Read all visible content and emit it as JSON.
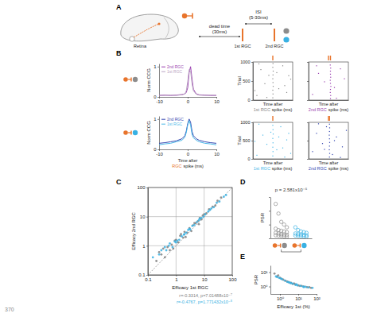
{
  "figure": {
    "line_number": "370",
    "panel_labels": [
      "A",
      "B",
      "C",
      "D",
      "E"
    ]
  },
  "diagram": {
    "region_label": "Retina",
    "dead_time": [
      "dead time",
      "(30ms)"
    ],
    "isi": [
      "ISI",
      "(5-30ms)"
    ],
    "spike_labels": [
      "1st RGC",
      "2nd RGC"
    ],
    "colors": {
      "ref": "#e8742c",
      "gray": "#8c8c8c",
      "cyan": "#39b1e3"
    }
  },
  "chart_data": [
    {
      "type": "line",
      "y_label": "Norm CCG",
      "legend": "upper left",
      "x": [
        -10,
        -8,
        -6,
        -4,
        -2,
        -1,
        -0.5,
        0,
        0.5,
        1,
        1.5,
        2,
        3,
        4,
        6,
        8,
        10
      ],
      "series": [
        {
          "name": "2nd RGC",
          "color": "#9a3fb0",
          "line_style": "solid",
          "values": [
            0.05,
            0.06,
            0.05,
            0.06,
            0.08,
            0.1,
            0.15,
            0.3,
            0.8,
            1,
            0.6,
            0.25,
            0.1,
            0.07,
            0.06,
            0.05,
            0.05
          ]
        },
        {
          "name": "1st RGC",
          "color": "#b9a3c2",
          "line_style": "solid",
          "values": [
            0.05,
            0.05,
            0.06,
            0.05,
            0.07,
            0.1,
            0.2,
            0.5,
            0.9,
            0.85,
            0.45,
            0.2,
            0.09,
            0.06,
            0.05,
            0.06,
            0.05
          ]
        }
      ],
      "xlim": [
        -10,
        10
      ],
      "xticks": [
        -10,
        0,
        10
      ],
      "ylim": [
        0,
        1.1
      ],
      "yticks": [
        0,
        1
      ]
    },
    {
      "type": "line",
      "y_label": "Norm CCG",
      "x_label": [
        "Time after",
        "RGC",
        "spike (ms)"
      ],
      "legend": "upper left",
      "x": [
        -10,
        -8,
        -6,
        -4,
        -2,
        -1,
        -0.5,
        0,
        0.5,
        1,
        1.5,
        2,
        3,
        4,
        6,
        8,
        10
      ],
      "series": [
        {
          "name": "2nd RGC",
          "color": "#3346b0",
          "line_style": "solid",
          "values": [
            0.2,
            0.22,
            0.25,
            0.28,
            0.35,
            0.45,
            0.6,
            0.85,
            1,
            0.9,
            0.6,
            0.45,
            0.35,
            0.3,
            0.25,
            0.22,
            0.2
          ]
        },
        {
          "name": "1st RGC",
          "color": "#49b8e8",
          "line_style": "solid",
          "values": [
            0.15,
            0.18,
            0.2,
            0.25,
            0.3,
            0.4,
            0.55,
            0.8,
            0.95,
            0.8,
            0.5,
            0.38,
            0.3,
            0.25,
            0.2,
            0.18,
            0.15
          ]
        }
      ],
      "xlim": [
        -10,
        10
      ],
      "xticks": [
        -10,
        0,
        10
      ],
      "ylim": [
        0,
        1.1
      ],
      "yticks": [
        0,
        1
      ]
    },
    {
      "type": "raster",
      "y_label": "Trial",
      "x_label": [
        "Time after",
        "1st RGC",
        "spike (ms)"
      ],
      "tick_labels": "y",
      "marker": "dot",
      "x": [
        0,
        0.1,
        0,
        0.2,
        0.1,
        0,
        0.1,
        0.2,
        0,
        0.1,
        -8,
        -6,
        -4,
        -2,
        3,
        5,
        7,
        9,
        -7,
        -3,
        2,
        6,
        8,
        -9
      ],
      "series": [
        {
          "color": "#888888",
          "values": [
            60,
            160,
            260,
            360,
            460,
            560,
            660,
            760,
            860,
            960,
            120,
            800,
            430,
            650,
            300,
            900,
            200,
            550,
            950,
            70,
            720,
            380,
            640,
            250
          ]
        }
      ],
      "event_markers": [
        0
      ],
      "xlim": [
        -10,
        10
      ],
      "xticks": [],
      "ylim": [
        0,
        1000
      ],
      "yticks": [
        0,
        500,
        1000
      ]
    },
    {
      "type": "raster",
      "x_label": [
        "Time after",
        "2nd RGC",
        "spike (ms)"
      ],
      "tick_labels": false,
      "marker": "dot",
      "x": [
        1,
        1.1,
        0.9,
        1,
        1.2,
        1,
        0.9,
        1.1,
        1,
        1,
        1.1,
        0.9,
        -8,
        -5,
        -2,
        3,
        6,
        8,
        -6,
        4
      ],
      "series": [
        {
          "color": "#9a3fb0",
          "values": [
            40,
            120,
            200,
            280,
            360,
            440,
            520,
            600,
            680,
            760,
            840,
            920,
            150,
            700,
            480,
            330,
            820,
            560,
            900,
            50
          ]
        }
      ],
      "event_markers": [
        0,
        1
      ],
      "xlim": [
        -10,
        10
      ],
      "xticks": [],
      "ylim": [
        0,
        1000
      ],
      "yticks": [
        0,
        500,
        1000
      ]
    },
    {
      "type": "raster",
      "y_label": "Trial",
      "x_label": [
        "Time after",
        "1st RGC",
        "spike (ms)"
      ],
      "tick_labels": "y",
      "marker": "dot",
      "x": [
        0,
        0.1,
        0,
        0.1,
        0,
        0.2,
        0.1,
        0,
        -8,
        -5,
        -3,
        2,
        4,
        7,
        9,
        -7,
        -1,
        5,
        8,
        -9,
        3,
        6
      ],
      "series": [
        {
          "color": "#49b8e8",
          "values": [
            80,
            200,
            320,
            440,
            560,
            680,
            800,
            920,
            100,
            650,
            400,
            250,
            880,
            520,
            150,
            950,
            730,
            300,
            700,
            480,
            600,
            50
          ]
        }
      ],
      "event_markers": [
        0
      ],
      "xlim": [
        -10,
        10
      ],
      "xticks": [],
      "ylim": [
        0,
        1000
      ],
      "yticks": [
        0,
        500,
        1000
      ]
    },
    {
      "type": "raster",
      "x_label": [
        "Time after",
        "2nd RGC",
        "spike (ms)"
      ],
      "tick_labels": false,
      "marker": "dot",
      "x": [
        0.5,
        0.6,
        0.4,
        0.5,
        0.6,
        0.5,
        0.4,
        0.5,
        0.6,
        0.5,
        -8,
        -6,
        -3,
        -1,
        2,
        4,
        7,
        9,
        -5,
        3,
        6,
        -2
      ],
      "series": [
        {
          "color": "#3346b0",
          "values": [
            50,
            150,
            250,
            350,
            450,
            550,
            650,
            750,
            850,
            950,
            200,
            700,
            420,
            880,
            120,
            600,
            330,
            780,
            960,
            500,
            40,
            260
          ]
        }
      ],
      "event_markers": [
        0,
        0.5
      ],
      "xlim": [
        -10,
        10
      ],
      "xticks": [],
      "ylim": [
        0,
        1000
      ],
      "yticks": [
        0,
        500,
        1000
      ]
    },
    {
      "type": "scatter",
      "x_label": "Efficacy 1st RGC",
      "y_label": "Efficacy 2nd RGC",
      "log": true,
      "grid": true,
      "series": [
        {
          "color": "#808080",
          "marker": "circle",
          "x": [
            0.2,
            0.3,
            0.4,
            0.5,
            0.6,
            0.7,
            0.8,
            1,
            1.2,
            1.5,
            1.8,
            2,
            2.5,
            3,
            3.5,
            4,
            5,
            6,
            7,
            8,
            10,
            12,
            15,
            20,
            25,
            30,
            40,
            0.35,
            0.9,
            2.2,
            4.5,
            9,
            0.25,
            1.4,
            6.5
          ],
          "values": [
            0.3,
            0.5,
            0.4,
            0.9,
            0.7,
            1.1,
            0.8,
            1.6,
            1.3,
            2.5,
            1.9,
            3,
            2.8,
            4,
            3.2,
            5,
            6,
            7,
            9,
            8,
            12,
            13,
            18,
            22,
            24,
            35,
            45,
            0.8,
            1.5,
            2.0,
            6,
            11,
            0.6,
            2.2,
            5.5
          ]
        },
        {
          "color": "#39b1e3",
          "marker": "circle",
          "x": [
            0.15,
            0.25,
            0.45,
            0.55,
            0.75,
            0.9,
            1.1,
            1.3,
            1.6,
            1.9,
            2.3,
            2.7,
            3.2,
            3.8,
            4.5,
            5.5,
            6.5,
            8,
            9.5,
            11,
            14,
            18,
            22,
            28,
            35,
            50,
            0.6,
            1.0,
            2.0,
            3.0,
            0.4,
            7,
            16,
            0.3,
            60
          ],
          "values": [
            0.4,
            0.5,
            0.7,
            1.0,
            0.9,
            1.4,
            1.5,
            1.6,
            2.1,
            2.4,
            2.8,
            3.5,
            3.6,
            4.8,
            5.2,
            6.5,
            7.5,
            9,
            10,
            12,
            15,
            19,
            21,
            30,
            33,
            48,
            1.2,
            1.3,
            2.5,
            3.8,
            0.9,
            8.5,
            17,
            0.7,
            55
          ]
        }
      ],
      "annotations": [
        {
          "text": "r=-0.3314, p=7.01488x10⁻⁷",
          "color": "#808080"
        },
        {
          "text": "r=-0.4767, p=1.771432x10⁻⁵",
          "color": "#39b1e3"
        }
      ],
      "xlim": [
        0.1,
        100
      ],
      "xticks": [
        0.1,
        1,
        10,
        100
      ],
      "ylim": [
        0.1,
        100
      ],
      "yticks": [
        0.1,
        1,
        10,
        100
      ]
    },
    {
      "type": "strip",
      "y_label": "PSR",
      "categories": [
        null,
        null
      ],
      "tick_labels": false,
      "marker": "open_circle",
      "colors": [
        "#8c8c8c",
        "#39b1e3"
      ],
      "values": [
        [
          25,
          18,
          12,
          10,
          8,
          7,
          6,
          5.5,
          5,
          4.5,
          4,
          3.5,
          3,
          2.8,
          2.5,
          2.2,
          2,
          1.8,
          1.5,
          1.2
        ],
        [
          8,
          6,
          5,
          4.5,
          4,
          3.5,
          3,
          2.8,
          2.5,
          2.2,
          2,
          1.8,
          1.6,
          1.4,
          1.2
        ]
      ],
      "annotations": [
        {
          "text": "p = 2.581x10⁻⁵",
          "color": "#333333"
        }
      ],
      "ylim": [
        0,
        30
      ],
      "yticks": [
        0,
        10,
        20,
        30
      ]
    },
    {
      "type": "scatter",
      "x_label": "Efficacy 1st (%)",
      "y_label": "PSR",
      "log": true,
      "series": [
        {
          "color": "#808080",
          "marker": "circle",
          "x": [
            0.5,
            0.7,
            1,
            1.5,
            2,
            3,
            4,
            5,
            7,
            10,
            15,
            20,
            30,
            50,
            0.8,
            2.5,
            6,
            12,
            1.2,
            40
          ],
          "values": [
            8,
            5,
            4,
            3,
            2.5,
            2,
            1.8,
            1.5,
            1.4,
            1.2,
            1.1,
            1.0,
            0.9,
            0.8,
            6,
            2.2,
            1.6,
            1.1,
            3.5,
            0.9
          ]
        },
        {
          "color": "#39b1e3",
          "marker": "circle",
          "x": [
            0.6,
            0.9,
            1.3,
            1.8,
            2.5,
            3.5,
            5,
            7,
            9,
            13,
            18,
            25,
            35,
            60,
            1.1,
            4,
            8,
            3,
            0.7,
            20
          ],
          "values": [
            5,
            4,
            3.2,
            2.6,
            2.1,
            1.8,
            1.6,
            1.3,
            1.2,
            1.1,
            1.0,
            0.95,
            0.85,
            0.8,
            3.6,
            1.7,
            1.4,
            2,
            4.5,
            0.9
          ]
        }
      ],
      "xlim": [
        0.3,
        100
      ],
      "xticks": [
        {
          "value": 1,
          "label": "10⁰"
        },
        {
          "value": 10,
          "label": "10¹"
        },
        {
          "value": 100,
          "label": "10²"
        }
      ],
      "ylim": [
        0.3,
        30
      ],
      "yticks": [
        {
          "value": 1,
          "label": "10⁰"
        },
        {
          "value": 10,
          "label": "10¹"
        }
      ]
    }
  ]
}
